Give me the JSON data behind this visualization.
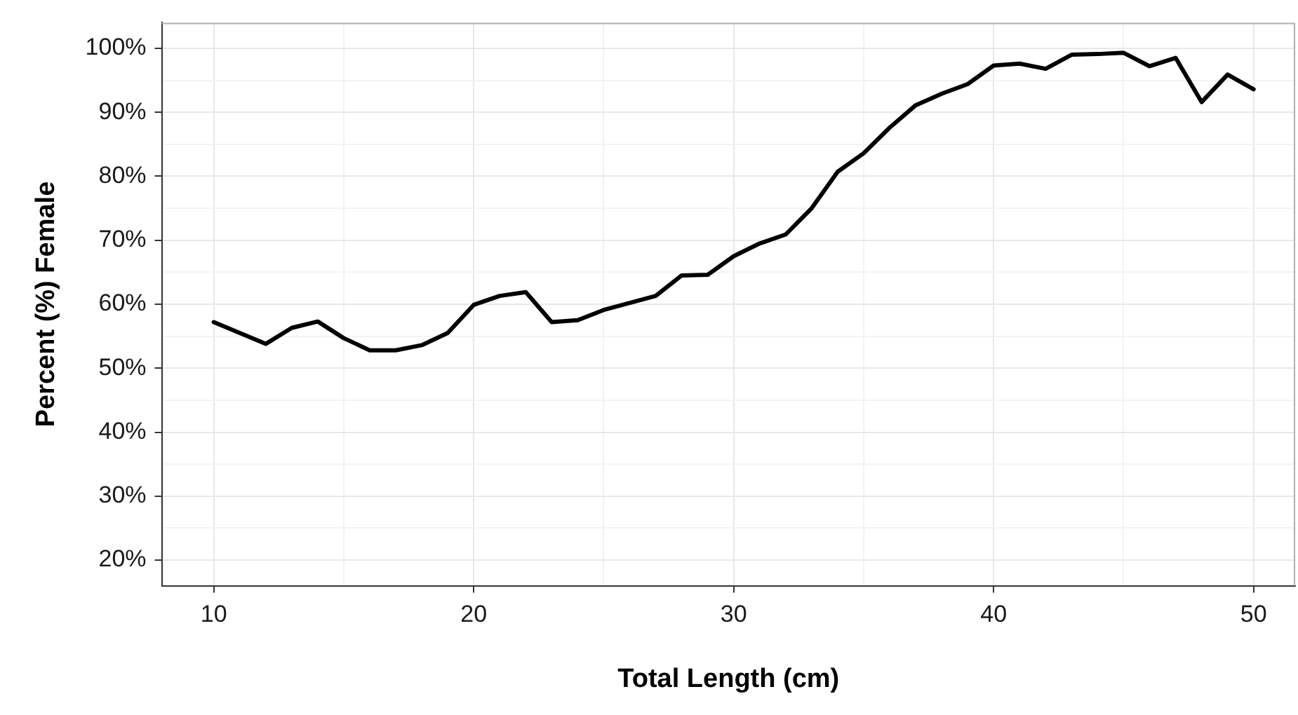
{
  "chart_data": {
    "type": "line",
    "xlabel": "Total Length (cm)",
    "ylabel": "Percent (%) Female",
    "x": [
      10,
      11,
      12,
      13,
      14,
      15,
      16,
      17,
      18,
      19,
      20,
      21,
      22,
      23,
      24,
      25,
      26,
      27,
      28,
      29,
      30,
      31,
      32,
      33,
      34,
      35,
      36,
      37,
      38,
      39,
      40,
      41,
      42,
      43,
      44,
      45,
      46,
      47,
      48,
      49,
      50
    ],
    "series": [
      {
        "color": "#000000",
        "values": [
          57.2,
          55.5,
          53.8,
          56.3,
          57.3,
          54.7,
          52.8,
          52.8,
          53.6,
          55.5,
          59.9,
          61.3,
          61.9,
          57.2,
          57.5,
          59.1,
          60.2,
          61.3,
          64.5,
          64.6,
          67.5,
          69.5,
          70.9,
          75.0,
          80.7,
          83.6,
          87.6,
          91.1,
          92.9,
          94.4,
          97.3,
          97.6,
          96.8,
          99.0,
          99.1,
          99.3,
          97.2,
          98.5,
          91.6,
          95.9,
          93.6
        ]
      }
    ],
    "xlim": [
      8,
      51.6
    ],
    "xticks": [
      10,
      {
        "value": 15,
        "label": null
      },
      20,
      {
        "value": 25,
        "label": null
      },
      30,
      {
        "value": 35,
        "label": null
      },
      40,
      {
        "value": 45,
        "label": null
      },
      50
    ],
    "ylim": [
      16,
      104
    ],
    "yticks": [
      {
        "value": 20,
        "label": "20%"
      },
      {
        "value": 25,
        "label": null
      },
      {
        "value": 30,
        "label": "30%"
      },
      {
        "value": 35,
        "label": null
      },
      {
        "value": 40,
        "label": "40%"
      },
      {
        "value": 45,
        "label": null
      },
      {
        "value": 50,
        "label": "50%"
      },
      {
        "value": 55,
        "label": null
      },
      {
        "value": 60,
        "label": "60%"
      },
      {
        "value": 65,
        "label": null
      },
      {
        "value": 70,
        "label": "70%"
      },
      {
        "value": 75,
        "label": null
      },
      {
        "value": 80,
        "label": "80%"
      },
      {
        "value": 85,
        "label": null
      },
      {
        "value": 90,
        "label": "90%"
      },
      {
        "value": 95,
        "label": null
      },
      {
        "value": 100,
        "label": "100%"
      }
    ],
    "grid": true,
    "legend": false,
    "marker": "none",
    "line_style": "solid"
  }
}
